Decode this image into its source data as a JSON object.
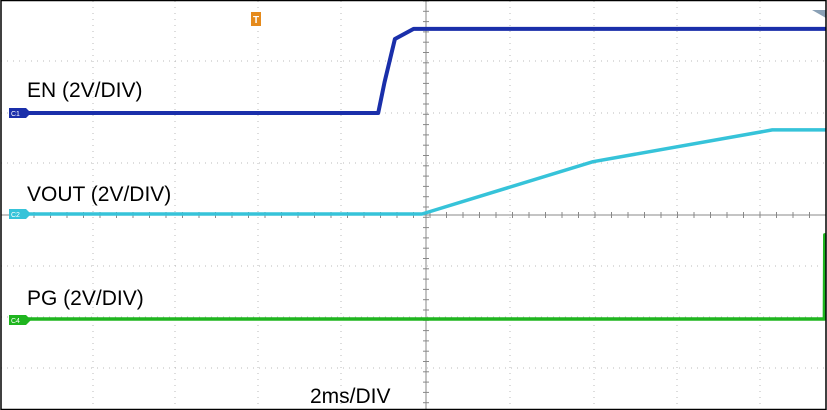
{
  "chart_data": {
    "type": "line",
    "title": "",
    "timebase": "2ms/DIV",
    "x_unit": "ms",
    "xlim": [
      0,
      20.4
    ],
    "grid": true,
    "channels": [
      {
        "id": "C1",
        "name": "EN (2V/DIV)",
        "color": "#1a2faa",
        "volts_per_div": 2,
        "x": [
          0,
          8.35,
          8.5,
          8.75,
          9.2,
          20.4
        ],
        "y": [
          0,
          0,
          1.2,
          2.9,
          3.3,
          3.3
        ]
      },
      {
        "id": "C2",
        "name": "VOUT (2V/DIV)",
        "color": "#36c3d9",
        "volts_per_div": 2,
        "x": [
          0,
          9.4,
          13.5,
          17.8,
          20.4
        ],
        "y": [
          0,
          0,
          2.05,
          3.3,
          3.3
        ]
      },
      {
        "id": "C4",
        "name": "PG (2V/DIV)",
        "color": "#1fb51f",
        "volts_per_div": 2,
        "x": [
          0,
          19.05,
          19.06,
          20.4
        ],
        "y": [
          0,
          0,
          3.3,
          3.3
        ]
      }
    ],
    "trigger_marker": "T"
  }
}
